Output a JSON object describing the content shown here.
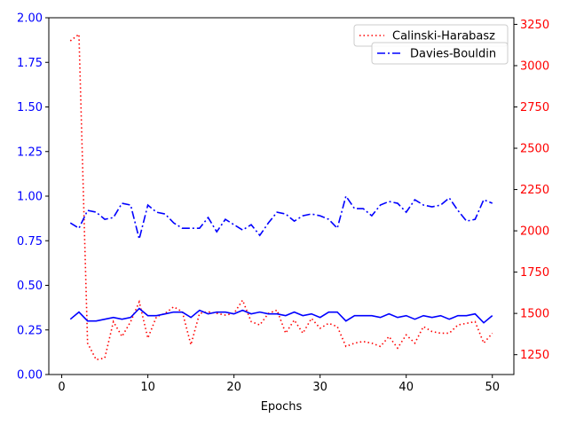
{
  "chart_data": {
    "type": "line",
    "xlabel": "Epochs",
    "ylabel_left": "",
    "ylabel_right": "",
    "xlim": [
      -1.5,
      52.5
    ],
    "ylim_left": [
      0,
      2.0
    ],
    "ylim_right": [
      1130,
      3290
    ],
    "xticks": [
      0,
      10,
      20,
      30,
      40,
      50
    ],
    "yticks_left": [
      0.0,
      0.25,
      0.5,
      0.75,
      1.0,
      1.25,
      1.5,
      1.75,
      2.0
    ],
    "yticks_right": [
      1250,
      1500,
      1750,
      2000,
      2250,
      2500,
      2750,
      3000,
      3250
    ],
    "grid": false,
    "legend_position": "top-right",
    "colors": {
      "left_axis": "#0000ff",
      "right_axis": "#ff0000",
      "axes": "#000000"
    },
    "x": [
      1,
      2,
      3,
      4,
      5,
      6,
      7,
      8,
      9,
      10,
      11,
      12,
      13,
      14,
      15,
      16,
      17,
      18,
      19,
      20,
      21,
      22,
      23,
      24,
      25,
      26,
      27,
      28,
      29,
      30,
      31,
      32,
      33,
      34,
      35,
      36,
      37,
      38,
      39,
      40,
      41,
      42,
      43,
      44,
      45,
      46,
      47,
      48,
      49,
      50
    ],
    "series": [
      {
        "name": "Calinski-Harabasz",
        "axis": "right",
        "color": "#ff0000",
        "style": "dotted",
        "values": [
          3150,
          3190,
          1320,
          1220,
          1230,
          1450,
          1360,
          1450,
          1570,
          1350,
          1480,
          1500,
          1540,
          1510,
          1310,
          1500,
          1510,
          1500,
          1490,
          1500,
          1580,
          1450,
          1430,
          1500,
          1520,
          1380,
          1460,
          1380,
          1470,
          1410,
          1440,
          1420,
          1300,
          1320,
          1330,
          1320,
          1300,
          1360,
          1290,
          1370,
          1320,
          1420,
          1390,
          1380,
          1380,
          1430,
          1440,
          1450,
          1320,
          1380
        ]
      },
      {
        "name": "Davies-Bouldin",
        "axis": "left",
        "color": "#0000ff",
        "style": "dashdot",
        "values": [
          0.85,
          0.82,
          0.92,
          0.91,
          0.87,
          0.88,
          0.96,
          0.95,
          0.76,
          0.95,
          0.91,
          0.9,
          0.85,
          0.82,
          0.82,
          0.82,
          0.88,
          0.8,
          0.87,
          0.84,
          0.81,
          0.84,
          0.78,
          0.85,
          0.91,
          0.9,
          0.86,
          0.89,
          0.9,
          0.89,
          0.87,
          0.82,
          1.0,
          0.93,
          0.93,
          0.89,
          0.95,
          0.97,
          0.96,
          0.91,
          0.98,
          0.95,
          0.94,
          0.95,
          0.99,
          0.92,
          0.86,
          0.87,
          0.98,
          0.96
        ]
      },
      {
        "name": "",
        "axis": "left",
        "color": "#0000ff",
        "style": "solid",
        "values": [
          0.31,
          0.35,
          0.3,
          0.3,
          0.31,
          0.32,
          0.31,
          0.32,
          0.37,
          0.33,
          0.33,
          0.34,
          0.35,
          0.35,
          0.32,
          0.36,
          0.34,
          0.35,
          0.35,
          0.34,
          0.36,
          0.34,
          0.35,
          0.34,
          0.34,
          0.33,
          0.35,
          0.33,
          0.34,
          0.32,
          0.35,
          0.35,
          0.3,
          0.33,
          0.33,
          0.33,
          0.32,
          0.34,
          0.32,
          0.33,
          0.31,
          0.33,
          0.32,
          0.33,
          0.31,
          0.33,
          0.33,
          0.34,
          0.29,
          0.33
        ]
      }
    ]
  }
}
